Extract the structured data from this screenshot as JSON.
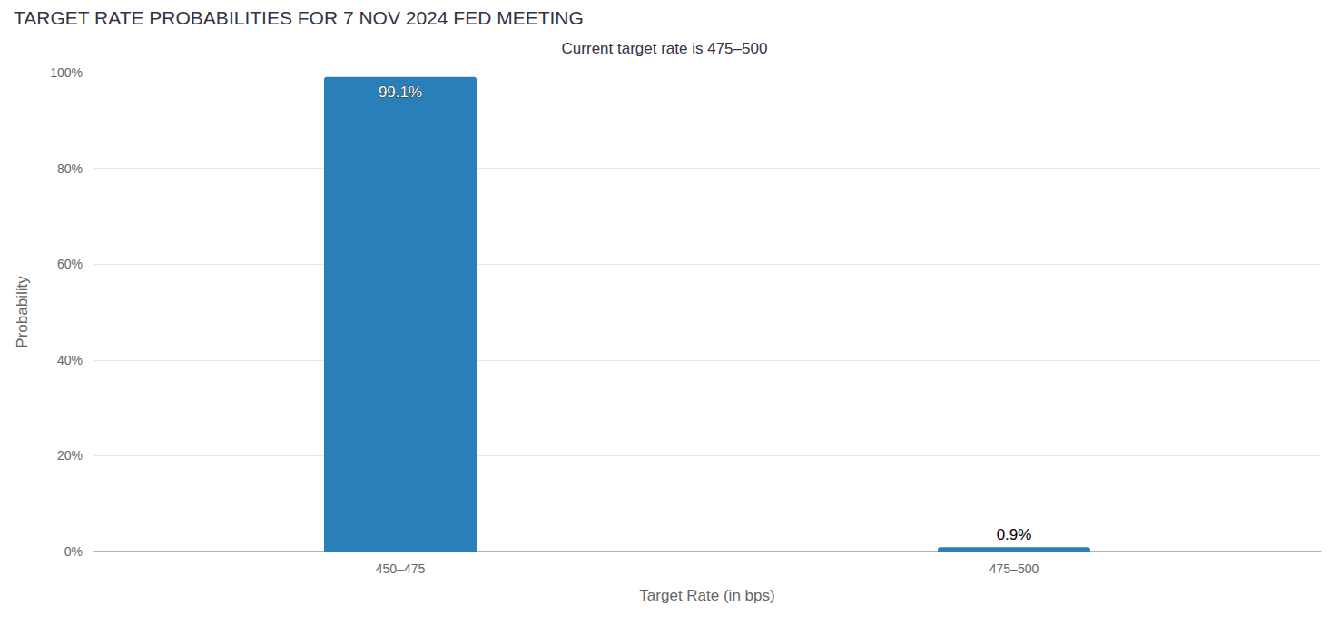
{
  "chart_data": {
    "type": "bar",
    "title": "TARGET RATE PROBABILITIES FOR 7 NOV 2024 FED MEETING",
    "subtitle": "Current target rate is 475–500",
    "x_label": "Target Rate (in bps)",
    "y_label": "Probability",
    "categories": [
      "450–475",
      "475–500"
    ],
    "values": [
      99.1,
      0.9
    ],
    "value_labels": [
      "99.1%",
      "0.9%"
    ],
    "color": "#2980b9",
    "ylim": [
      0,
      100
    ],
    "yticks": [
      {
        "value": 0,
        "label": "0%"
      },
      {
        "value": 20,
        "label": "20%"
      },
      {
        "value": 40,
        "label": "40%"
      },
      {
        "value": 60,
        "label": "60%"
      },
      {
        "value": 80,
        "label": "80%"
      },
      {
        "value": 100,
        "label": "100%"
      }
    ],
    "grid": true,
    "data_labels": true
  }
}
